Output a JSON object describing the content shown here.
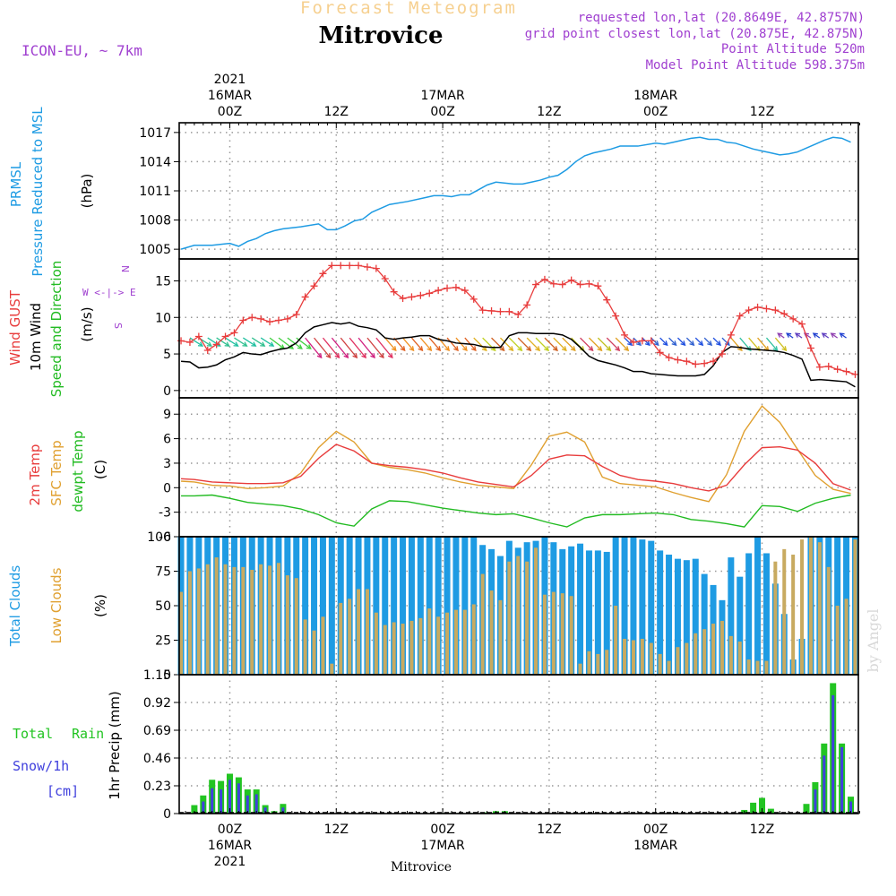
{
  "header": {
    "kind": "Forecast Meteogram",
    "station": "Mitrovice",
    "model": "ICON-EU, ~ 7km",
    "requested": "requested lon,lat (20.8649E, 42.8757N)",
    "grid_point": "grid point closest lon,lat (20.875E, 42.875N)",
    "point_alt": "Point Altitude 520m",
    "model_alt": "Model Point Altitude 598.375m",
    "credit": "by Angel",
    "footer": "Mitrovice"
  },
  "colors": {
    "pressure": "#1e9be3",
    "gust": "#e83c3c",
    "wind": "#000000",
    "temp": "#e83c3c",
    "sfc": "#e0a030",
    "dewpt": "#22bb22",
    "total_clouds": "#1e9be3",
    "low_clouds": "#c8aa60",
    "rain": "#22c422",
    "snow": "#4040dd",
    "purple": "#a040d0",
    "grid": "#999999"
  },
  "time_axis": {
    "top_labels": [
      {
        "h": 0,
        "lines": [
          "2021",
          "16MAR",
          "00Z"
        ]
      },
      {
        "h": 12,
        "lines": [
          "12Z"
        ]
      },
      {
        "h": 24,
        "lines": [
          "17MAR",
          "00Z"
        ]
      },
      {
        "h": 36,
        "lines": [
          "12Z"
        ]
      },
      {
        "h": 48,
        "lines": [
          "18MAR",
          "00Z"
        ]
      },
      {
        "h": 60,
        "lines": [
          "12Z"
        ]
      }
    ],
    "bottom_labels": [
      {
        "h": 0,
        "lines": [
          "00Z",
          "16MAR",
          "2021"
        ]
      },
      {
        "h": 12,
        "lines": [
          "12Z"
        ]
      },
      {
        "h": 24,
        "lines": [
          "00Z",
          "17MAR"
        ]
      },
      {
        "h": 36,
        "lines": [
          "12Z"
        ]
      },
      {
        "h": 48,
        "lines": [
          "00Z",
          "18MAR"
        ]
      },
      {
        "h": 60,
        "lines": [
          "12Z"
        ]
      }
    ]
  },
  "chart_data": [
    {
      "type": "line",
      "id": "pressure",
      "labels": [
        "PRMSL",
        "Pressure Reduced to MSL"
      ],
      "units": "(hPa)",
      "ylim": [
        1004,
        1018
      ],
      "yticks": [
        1005,
        1008,
        1011,
        1014,
        1017
      ],
      "x": [
        -5.5,
        -4,
        -2,
        0,
        1,
        2,
        3,
        4,
        5,
        6,
        8,
        10,
        11,
        12,
        13,
        14,
        15,
        16,
        18,
        20,
        22,
        23,
        24,
        25,
        26,
        27,
        28,
        29,
        30,
        32,
        33,
        34,
        35,
        36,
        37,
        38,
        39,
        40,
        41,
        42,
        43,
        44,
        46,
        48,
        49,
        50,
        51,
        52,
        53,
        54,
        55,
        56,
        57,
        58,
        59,
        60,
        61,
        62,
        63,
        64,
        66,
        67,
        68,
        69,
        70
      ],
      "series": [
        {
          "name": "PRMSL",
          "values": [
            1005.0,
            1005.4,
            1005.4,
            1005.6,
            1005.3,
            1005.8,
            1006.1,
            1006.6,
            1006.9,
            1007.1,
            1007.3,
            1007.6,
            1007.0,
            1007.0,
            1007.4,
            1007.9,
            1008.1,
            1008.8,
            1009.6,
            1009.9,
            1010.3,
            1010.5,
            1010.5,
            1010.4,
            1010.6,
            1010.6,
            1011.1,
            1011.6,
            1011.9,
            1011.7,
            1011.7,
            1011.9,
            1012.1,
            1012.4,
            1012.6,
            1013.2,
            1014.0,
            1014.6,
            1014.9,
            1015.1,
            1015.3,
            1015.6,
            1015.6,
            1015.9,
            1015.8,
            1016.0,
            1016.2,
            1016.4,
            1016.5,
            1016.3,
            1016.3,
            1016.0,
            1015.9,
            1015.6,
            1015.3,
            1015.1,
            1014.9,
            1014.7,
            1014.8,
            1015.0,
            1015.8,
            1016.2,
            1016.5,
            1016.4,
            1016.0
          ]
        }
      ]
    },
    {
      "type": "line",
      "id": "wind",
      "labels": [
        "Wind GUST",
        "10m Wind",
        "Speed and Direction"
      ],
      "units": "(m/s)",
      "compass": [
        "N",
        "W <-|-> E",
        "S"
      ],
      "ylim": [
        -1,
        18
      ],
      "yticks": [
        0,
        5,
        10,
        15
      ],
      "x": [
        -5.5,
        -4.5,
        -3.5,
        -2.5,
        -1.5,
        -0.5,
        0.5,
        1.5,
        2.5,
        3.5,
        4.5,
        5.5,
        6.5,
        7.5,
        8.5,
        9.5,
        10.5,
        11.5,
        12.5,
        13.5,
        14.5,
        15.5,
        16.5,
        17.5,
        18.5,
        19.5,
        20.5,
        21.5,
        22.5,
        23.5,
        24.5,
        25.5,
        26.5,
        27.5,
        28.5,
        29.5,
        30.5,
        31.5,
        32.5,
        33.5,
        34.5,
        35.5,
        36.5,
        37.5,
        38.5,
        39.5,
        40.5,
        41.5,
        42.5,
        43.5,
        44.5,
        45.5,
        46.5,
        47.5,
        48.5,
        49.5,
        50.5,
        51.5,
        52.5,
        53.5,
        54.5,
        55.5,
        56.5,
        57.5,
        58.5,
        59.5,
        60.5,
        61.5,
        62.5,
        63.5,
        64.5,
        65.5,
        66.5,
        67.5,
        68.5,
        69.5,
        70.5
      ],
      "series": [
        {
          "name": "Wind GUST",
          "values": [
            6.8,
            6.6,
            7.4,
            5.5,
            6.3,
            7.4,
            7.9,
            9.6,
            10.0,
            9.8,
            9.4,
            9.6,
            9.8,
            10.4,
            12.8,
            14.3,
            16.0,
            17.1,
            17.1,
            17.1,
            17.1,
            16.9,
            16.7,
            15.3,
            13.5,
            12.6,
            12.8,
            13.0,
            13.3,
            13.7,
            14.0,
            14.1,
            13.7,
            12.5,
            11.0,
            10.9,
            10.8,
            10.8,
            10.4,
            11.7,
            14.5,
            15.2,
            14.6,
            14.5,
            15.1,
            14.5,
            14.6,
            14.3,
            12.4,
            10.2,
            7.6,
            6.6,
            6.8,
            6.8,
            5.2,
            4.5,
            4.2,
            4.0,
            3.6,
            3.7,
            4.0,
            5.0,
            7.6,
            10.2,
            11.0,
            11.4,
            11.2,
            11.0,
            10.5,
            9.8,
            9.1,
            5.8,
            3.2,
            3.3,
            2.9,
            2.6,
            2.2
          ]
        },
        {
          "name": "10m Wind",
          "values": [
            4.0,
            3.9,
            3.1,
            3.2,
            3.5,
            4.2,
            4.6,
            5.2,
            5.0,
            4.9,
            5.3,
            5.6,
            5.8,
            6.5,
            7.9,
            8.7,
            9.0,
            9.3,
            9.1,
            9.3,
            8.8,
            8.6,
            8.3,
            7.2,
            7.0,
            7.2,
            7.3,
            7.5,
            7.5,
            7.0,
            6.8,
            6.5,
            6.4,
            6.3,
            6.0,
            5.9,
            5.9,
            7.5,
            7.9,
            7.9,
            7.8,
            7.8,
            7.8,
            7.6,
            7.0,
            5.9,
            4.7,
            4.1,
            3.8,
            3.5,
            3.1,
            2.6,
            2.6,
            2.3,
            2.2,
            2.1,
            2.0,
            2.0,
            2.0,
            2.2,
            3.4,
            5.2,
            6.0,
            5.9,
            5.7,
            5.6,
            5.5,
            5.4,
            5.2,
            4.8,
            4.3,
            1.4,
            1.5,
            1.4,
            1.3,
            1.2,
            0.5
          ]
        }
      ]
    },
    {
      "type": "line",
      "id": "temp",
      "labels": [
        "2m Temp",
        "SFC Temp",
        "dewpt Temp"
      ],
      "units": "(C)",
      "ylim": [
        -6,
        11
      ],
      "yticks": [
        -6,
        -3,
        0,
        3,
        6,
        9
      ],
      "x": [
        -5.5,
        -4,
        -2,
        0,
        2,
        4,
        6,
        8,
        10,
        12,
        14,
        16,
        18,
        20,
        22,
        24,
        26,
        28,
        30,
        32,
        34,
        36,
        38,
        40,
        42,
        44,
        46,
        48,
        50,
        52,
        54,
        56,
        58,
        60,
        62,
        64,
        66,
        68,
        70
      ],
      "series": [
        {
          "name": "2m Temp",
          "values": [
            1.1,
            1.0,
            0.7,
            0.6,
            0.5,
            0.5,
            0.6,
            1.4,
            3.6,
            5.3,
            4.5,
            3.0,
            2.7,
            2.5,
            2.2,
            1.8,
            1.2,
            0.7,
            0.4,
            0.1,
            1.5,
            3.5,
            4.0,
            3.9,
            2.6,
            1.5,
            1.0,
            0.8,
            0.5,
            0.0,
            -0.4,
            0.3,
            2.8,
            4.9,
            5.0,
            4.6,
            3.0,
            0.5,
            -0.3
          ]
        },
        {
          "name": "SFC Temp",
          "values": [
            0.8,
            0.7,
            0.3,
            0.2,
            -0.1,
            0.0,
            0.2,
            1.8,
            4.9,
            6.9,
            5.6,
            3.0,
            2.5,
            2.2,
            1.8,
            1.2,
            0.7,
            0.3,
            0.1,
            -0.1,
            2.8,
            6.3,
            6.8,
            5.6,
            1.3,
            0.5,
            0.3,
            0.1,
            -0.6,
            -1.2,
            -1.7,
            1.6,
            6.9,
            10.0,
            8.0,
            4.7,
            1.5,
            -0.2,
            -0.7
          ]
        },
        {
          "name": "dewpt Temp",
          "values": [
            -1.0,
            -1.0,
            -0.9,
            -1.3,
            -1.8,
            -2.0,
            -2.2,
            -2.6,
            -3.3,
            -4.3,
            -4.7,
            -2.6,
            -1.6,
            -1.7,
            -2.1,
            -2.5,
            -2.8,
            -3.1,
            -3.3,
            -3.2,
            -3.7,
            -4.3,
            -4.8,
            -3.7,
            -3.3,
            -3.3,
            -3.2,
            -3.1,
            -3.3,
            -3.9,
            -4.1,
            -4.4,
            -4.8,
            -2.2,
            -2.3,
            -2.9,
            -1.9,
            -1.3,
            -0.9
          ]
        }
      ]
    },
    {
      "type": "bar",
      "id": "clouds",
      "labels": [
        "Total Clouds",
        "Low Clouds"
      ],
      "units": "(%)",
      "ylim": [
        0,
        100
      ],
      "yticks": [
        0,
        25,
        50,
        75,
        100
      ],
      "x": [
        -5.5,
        -4.5,
        -3.5,
        -2.5,
        -1.5,
        -0.5,
        0.5,
        1.5,
        2.5,
        3.5,
        4.5,
        5.5,
        6.5,
        7.5,
        8.5,
        9.5,
        10.5,
        11.5,
        12.5,
        13.5,
        14.5,
        15.5,
        16.5,
        17.5,
        18.5,
        19.5,
        20.5,
        21.5,
        22.5,
        23.5,
        24.5,
        25.5,
        26.5,
        27.5,
        28.5,
        29.5,
        30.5,
        31.5,
        32.5,
        33.5,
        34.5,
        35.5,
        36.5,
        37.5,
        38.5,
        39.5,
        40.5,
        41.5,
        42.5,
        43.5,
        44.5,
        45.5,
        46.5,
        47.5,
        48.5,
        49.5,
        50.5,
        51.5,
        52.5,
        53.5,
        54.5,
        55.5,
        56.5,
        57.5,
        58.5,
        59.5,
        60.5,
        61.5,
        62.5,
        63.5,
        64.5,
        65.5,
        66.5,
        67.5,
        68.5,
        69.5,
        70.5
      ],
      "series": [
        {
          "name": "Total Clouds",
          "values": [
            100,
            100,
            100,
            100,
            100,
            100,
            100,
            100,
            100,
            100,
            100,
            100,
            100,
            100,
            100,
            100,
            100,
            100,
            100,
            100,
            100,
            100,
            100,
            100,
            100,
            100,
            100,
            100,
            100,
            100,
            100,
            100,
            100,
            100,
            94,
            91,
            86,
            97,
            92,
            96,
            97,
            100,
            96,
            91,
            93,
            95,
            90,
            90,
            89,
            100,
            100,
            100,
            98,
            97,
            90,
            87,
            84,
            83,
            84,
            73,
            65,
            54,
            85,
            71,
            88,
            100,
            88,
            66,
            44,
            11,
            26,
            100,
            100,
            100,
            100,
            100,
            100
          ]
        },
        {
          "name": "Low Clouds",
          "values": [
            60,
            75,
            77,
            80,
            85,
            80,
            78,
            78,
            76,
            80,
            79,
            81,
            72,
            70,
            40,
            32,
            42,
            8,
            52,
            55,
            62,
            62,
            45,
            36,
            38,
            37,
            39,
            41,
            48,
            42,
            45,
            47,
            47,
            51,
            73,
            61,
            54,
            82,
            86,
            82,
            92,
            58,
            60,
            59,
            57,
            8,
            17,
            15,
            18,
            50,
            26,
            25,
            26,
            23,
            15,
            10,
            20,
            23,
            30,
            33,
            37,
            39,
            28,
            24,
            11,
            10,
            10,
            82,
            91,
            87,
            98,
            100,
            96,
            78,
            50,
            55,
            98
          ]
        }
      ]
    },
    {
      "type": "bar",
      "id": "precip",
      "labels": [
        "Total",
        "Rain",
        "Snow/1h",
        "[cm]"
      ],
      "units": "1hr Precip (mm)",
      "ylim": [
        0,
        1.15
      ],
      "yticks": [
        0,
        0.23,
        0.46,
        0.69,
        0.92,
        1.15
      ],
      "x": [
        -4,
        -3,
        -2,
        -1,
        0,
        1,
        2,
        3,
        4,
        5,
        6,
        24,
        25,
        26,
        27,
        29,
        30,
        31,
        58,
        59,
        60,
        61,
        62,
        63,
        64,
        65,
        66,
        67,
        68,
        69,
        70
      ],
      "series": [
        {
          "name": "Total Rain",
          "values": [
            0.07,
            0.15,
            0.28,
            0.27,
            0.33,
            0.3,
            0.2,
            0.2,
            0.07,
            0.02,
            0.08,
            0.005,
            0.005,
            0.005,
            0.005,
            0.01,
            0.02,
            0.02,
            0.03,
            0.09,
            0.13,
            0.04,
            0.005,
            0.005,
            0.005,
            0.08,
            0.26,
            0.58,
            1.08,
            0.58,
            0.14
          ]
        },
        {
          "name": "Snow/1h",
          "values": [
            0.0,
            0.1,
            0.21,
            0.2,
            0.28,
            0.25,
            0.15,
            0.16,
            0.05,
            0.0,
            0.05,
            0.0,
            0.0,
            0.0,
            0.0,
            0.0,
            0.01,
            0.01,
            0.0,
            0.0,
            0.0,
            0.0,
            0.0,
            0.0,
            0.0,
            0.0,
            0.2,
            0.48,
            0.98,
            0.55,
            0.1
          ]
        }
      ]
    }
  ]
}
